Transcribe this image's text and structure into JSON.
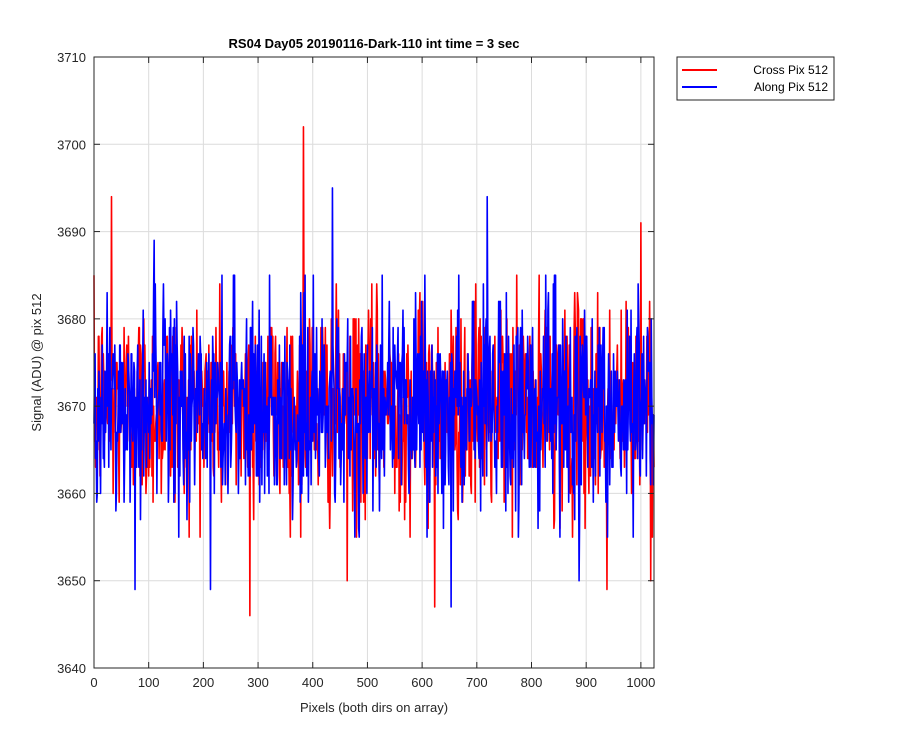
{
  "chart_data": {
    "type": "line",
    "title": "RS04 Day05 20190116-Dark-110 int time = 3 sec",
    "xlabel": "Pixels (both dirs on array)",
    "ylabel": "Signal (ADU) @ pix 512",
    "xlim": [
      0,
      1024
    ],
    "ylim": [
      3640,
      3710
    ],
    "xticks": [
      0,
      100,
      200,
      300,
      400,
      500,
      600,
      700,
      800,
      900,
      1000
    ],
    "yticks": [
      3640,
      3650,
      3660,
      3670,
      3680,
      3690,
      3700,
      3710
    ],
    "grid": true,
    "legend_position": "outside-top-right",
    "series": [
      {
        "name": "Cross Pix 512",
        "color": "#ff0000",
        "mean": 3670,
        "std": 6,
        "x_start": 0,
        "x_end": 1024,
        "peaks": [
          {
            "x": 32,
            "y": 3694
          },
          {
            "x": 285,
            "y": 3646
          },
          {
            "x": 383,
            "y": 3702
          },
          {
            "x": 463,
            "y": 3650
          },
          {
            "x": 623,
            "y": 3647
          },
          {
            "x": 938,
            "y": 3649
          },
          {
            "x": 1000,
            "y": 3691
          },
          {
            "x": 1018,
            "y": 3650
          }
        ]
      },
      {
        "name": "Along Pix 512",
        "color": "#0000ff",
        "mean": 3670,
        "std": 6,
        "x_start": 0,
        "x_end": 1024,
        "peaks": [
          {
            "x": 75,
            "y": 3649
          },
          {
            "x": 110,
            "y": 3689
          },
          {
            "x": 213,
            "y": 3649
          },
          {
            "x": 436,
            "y": 3695
          },
          {
            "x": 653,
            "y": 3647
          },
          {
            "x": 719,
            "y": 3694
          },
          {
            "x": 887,
            "y": 3650
          }
        ]
      }
    ]
  }
}
